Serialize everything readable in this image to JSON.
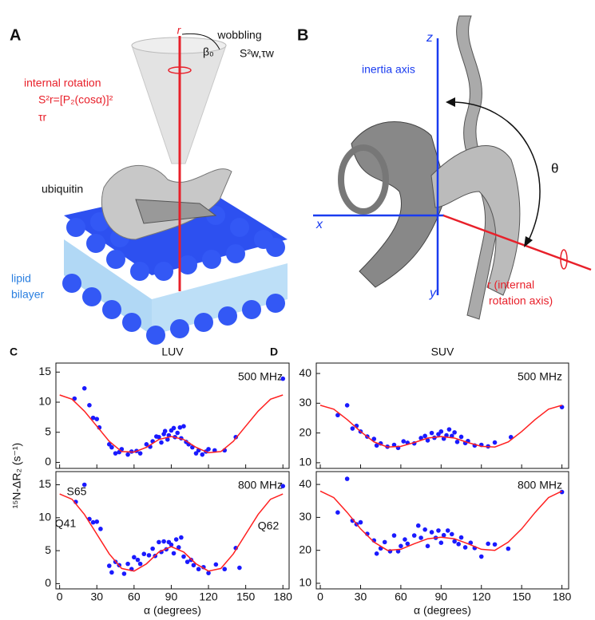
{
  "panel_a": {
    "letter": "A",
    "axis": "r",
    "wobbling": "wobbling",
    "beta": "β₀",
    "wobble_params": "S²w,τw",
    "rotation": "internal rotation",
    "order": "S²r=[P₂(cosα)]²",
    "tau": "τr",
    "protein": "ubiquitin",
    "lipid": "lipid",
    "bilayer": "bilayer"
  },
  "panel_b": {
    "letter": "B",
    "z": "z",
    "inertia": "inertia axis",
    "x": "x",
    "y": "y",
    "theta": "θ",
    "r1": "r (internal",
    "r2": "rotation axis)"
  },
  "chart_data": [
    {
      "type": "scatter",
      "panel": "C",
      "title": "LUV",
      "annotation": "500 MHz",
      "ylabel": "¹⁵N-ΔR₂ (s⁻¹)",
      "xlim": [
        -3,
        185
      ],
      "xticks": [
        0,
        30,
        60,
        90,
        120,
        150,
        180
      ],
      "ylim": [
        -1,
        16.5
      ],
      "yticks": [
        0,
        5,
        10,
        15
      ],
      "series": [
        {
          "type": "scatter",
          "color": "#1a1aff",
          "x": [
            12,
            20,
            24,
            27,
            30,
            32,
            40,
            42,
            45,
            48,
            50,
            55,
            58,
            62,
            65,
            70,
            73,
            75,
            78,
            80,
            82,
            84,
            85,
            87,
            88,
            90,
            92,
            93,
            95,
            97,
            98,
            100,
            102,
            104,
            107,
            110,
            112,
            115,
            118,
            120,
            125,
            133,
            142,
            180
          ],
          "values": [
            10.6,
            12.3,
            9.5,
            7.4,
            7.2,
            5.8,
            3,
            2.5,
            1.5,
            1.7,
            2.2,
            1.3,
            1.8,
            1.9,
            1.5,
            3,
            2.6,
            3.5,
            4.3,
            4.2,
            3.3,
            4.7,
            5.2,
            3.8,
            4.5,
            5.3,
            5.7,
            4.2,
            4.9,
            5.8,
            4,
            6,
            3.4,
            3,
            2.5,
            1.5,
            2,
            1.3,
            1.8,
            2.2,
            2,
            2,
            4.2,
            13.9
          ]
        },
        {
          "type": "line",
          "color": "#ff2020",
          "x": [
            0,
            10,
            20,
            30,
            40,
            50,
            60,
            70,
            80,
            90,
            100,
            110,
            120,
            130,
            140,
            150,
            160,
            170,
            180
          ],
          "values": [
            11.2,
            10.5,
            8.5,
            6,
            3.5,
            1.8,
            1.7,
            2.5,
            3.8,
            4.3,
            3.8,
            2.5,
            1.6,
            1.8,
            3.5,
            6,
            8.5,
            10.5,
            11.2
          ]
        }
      ]
    },
    {
      "type": "scatter",
      "annotation": "800 MHz",
      "xlabel": "α (degrees)",
      "point_labels": [
        "Q41",
        "S65",
        "Q62"
      ],
      "xlim": [
        -3,
        185
      ],
      "xticks": [
        0,
        30,
        60,
        90,
        120,
        150,
        180
      ],
      "ylim": [
        -0.8,
        17
      ],
      "yticks": [
        0,
        5,
        10,
        15
      ],
      "series": [
        {
          "type": "scatter",
          "color": "#1a1aff",
          "x": [
            13,
            20,
            24,
            27,
            30,
            33,
            40,
            42,
            45,
            48,
            52,
            55,
            58,
            60,
            63,
            65,
            68,
            72,
            75,
            77,
            80,
            82,
            84,
            86,
            88,
            90,
            92,
            94,
            96,
            98,
            100,
            103,
            106,
            108,
            112,
            116,
            120,
            126,
            133,
            142,
            145,
            180
          ],
          "values": [
            12.4,
            15,
            9.8,
            9.3,
            9.4,
            8.3,
            2.7,
            1.7,
            3.3,
            2.8,
            1.5,
            3,
            2.2,
            4,
            3.6,
            3,
            4.5,
            4.3,
            5.3,
            4.2,
            6.3,
            4.8,
            6.4,
            5.2,
            6.3,
            5.9,
            4.6,
            6.7,
            5.5,
            7,
            4.1,
            3.3,
            3.6,
            2.8,
            2.2,
            2.5,
            1.6,
            2.9,
            2.2,
            5.4,
            2.4,
            14.8
          ]
        },
        {
          "type": "line",
          "color": "#ff2020",
          "x": [
            0,
            10,
            20,
            30,
            40,
            50,
            60,
            70,
            80,
            90,
            100,
            110,
            120,
            130,
            140,
            150,
            160,
            170,
            180
          ],
          "values": [
            13.6,
            12.8,
            10.5,
            7.5,
            4.5,
            2.3,
            1.9,
            3,
            4.8,
            5.6,
            4.8,
            3,
            1.9,
            2.3,
            4.5,
            7.5,
            10.5,
            12.8,
            13.6
          ]
        }
      ]
    },
    {
      "type": "scatter",
      "panel": "D",
      "title": "SUV",
      "annotation": "500 MHz",
      "xlim": [
        -3,
        185
      ],
      "xticks": [
        0,
        30,
        60,
        90,
        120,
        150,
        180
      ],
      "ylim": [
        8.1,
        43.5
      ],
      "yticks": [
        10,
        20,
        30,
        40
      ],
      "series": [
        {
          "type": "scatter",
          "color": "#1a1aff",
          "x": [
            13,
            20,
            24,
            27,
            30,
            35,
            40,
            42,
            45,
            50,
            55,
            58,
            62,
            65,
            70,
            75,
            78,
            80,
            83,
            85,
            88,
            90,
            92,
            94,
            96,
            98,
            100,
            102,
            105,
            108,
            110,
            115,
            120,
            125,
            130,
            142,
            180
          ],
          "values": [
            26,
            29.3,
            21.5,
            22.4,
            20.5,
            18.8,
            18,
            15.8,
            16.5,
            15.4,
            16,
            15,
            17.2,
            16.7,
            16.5,
            18.3,
            19,
            17.5,
            20,
            18.4,
            19.6,
            20.5,
            18.1,
            19.2,
            21.2,
            19,
            20.2,
            17,
            18.7,
            16.6,
            17.3,
            15.8,
            16,
            15.5,
            16.8,
            18.6,
            28.7
          ]
        },
        {
          "type": "line",
          "color": "#ff2020",
          "x": [
            0,
            10,
            20,
            30,
            40,
            50,
            60,
            70,
            80,
            90,
            100,
            110,
            120,
            130,
            140,
            150,
            160,
            170,
            180
          ],
          "values": [
            29.3,
            28,
            24.5,
            20.5,
            17,
            15.3,
            15.5,
            16.8,
            18.3,
            18.8,
            18.3,
            16.8,
            15.5,
            15.3,
            17,
            20.5,
            24.5,
            28,
            29.3
          ]
        }
      ]
    },
    {
      "type": "scatter",
      "annotation": "800 MHz",
      "xlabel": "α (degrees)",
      "xlim": [
        -3,
        185
      ],
      "xticks": [
        0,
        30,
        60,
        90,
        120,
        150,
        180
      ],
      "ylim": [
        8.3,
        43.9
      ],
      "yticks": [
        10,
        20,
        30,
        40
      ],
      "series": [
        {
          "type": "scatter",
          "color": "#1a1aff",
          "x": [
            13,
            20,
            24,
            27,
            30,
            35,
            40,
            42,
            45,
            48,
            52,
            55,
            58,
            60,
            63,
            65,
            70,
            73,
            75,
            78,
            80,
            83,
            86,
            88,
            90,
            92,
            95,
            98,
            100,
            103,
            105,
            108,
            112,
            115,
            120,
            125,
            130,
            140,
            180
          ],
          "values": [
            31.5,
            41.7,
            29,
            27.9,
            28.5,
            25,
            23,
            19,
            20.6,
            22.5,
            19.7,
            24.5,
            19.7,
            21.3,
            23.3,
            22,
            24.5,
            27.5,
            23.8,
            26.3,
            21.3,
            25.5,
            23.8,
            26,
            22.3,
            24.6,
            26,
            24.9,
            22.7,
            21.9,
            23.9,
            20.9,
            22.3,
            20.7,
            18.1,
            22,
            21.8,
            20.5,
            37.7
          ]
        },
        {
          "type": "line",
          "color": "#ff2020",
          "x": [
            0,
            10,
            20,
            30,
            40,
            50,
            60,
            70,
            80,
            90,
            100,
            110,
            120,
            130,
            140,
            150,
            160,
            170,
            180
          ],
          "values": [
            38,
            36,
            31.5,
            26.5,
            22.5,
            20,
            20.3,
            22,
            23.5,
            24,
            23.5,
            22,
            20.3,
            20,
            22.5,
            26.5,
            31.5,
            36,
            38
          ]
        }
      ]
    }
  ]
}
